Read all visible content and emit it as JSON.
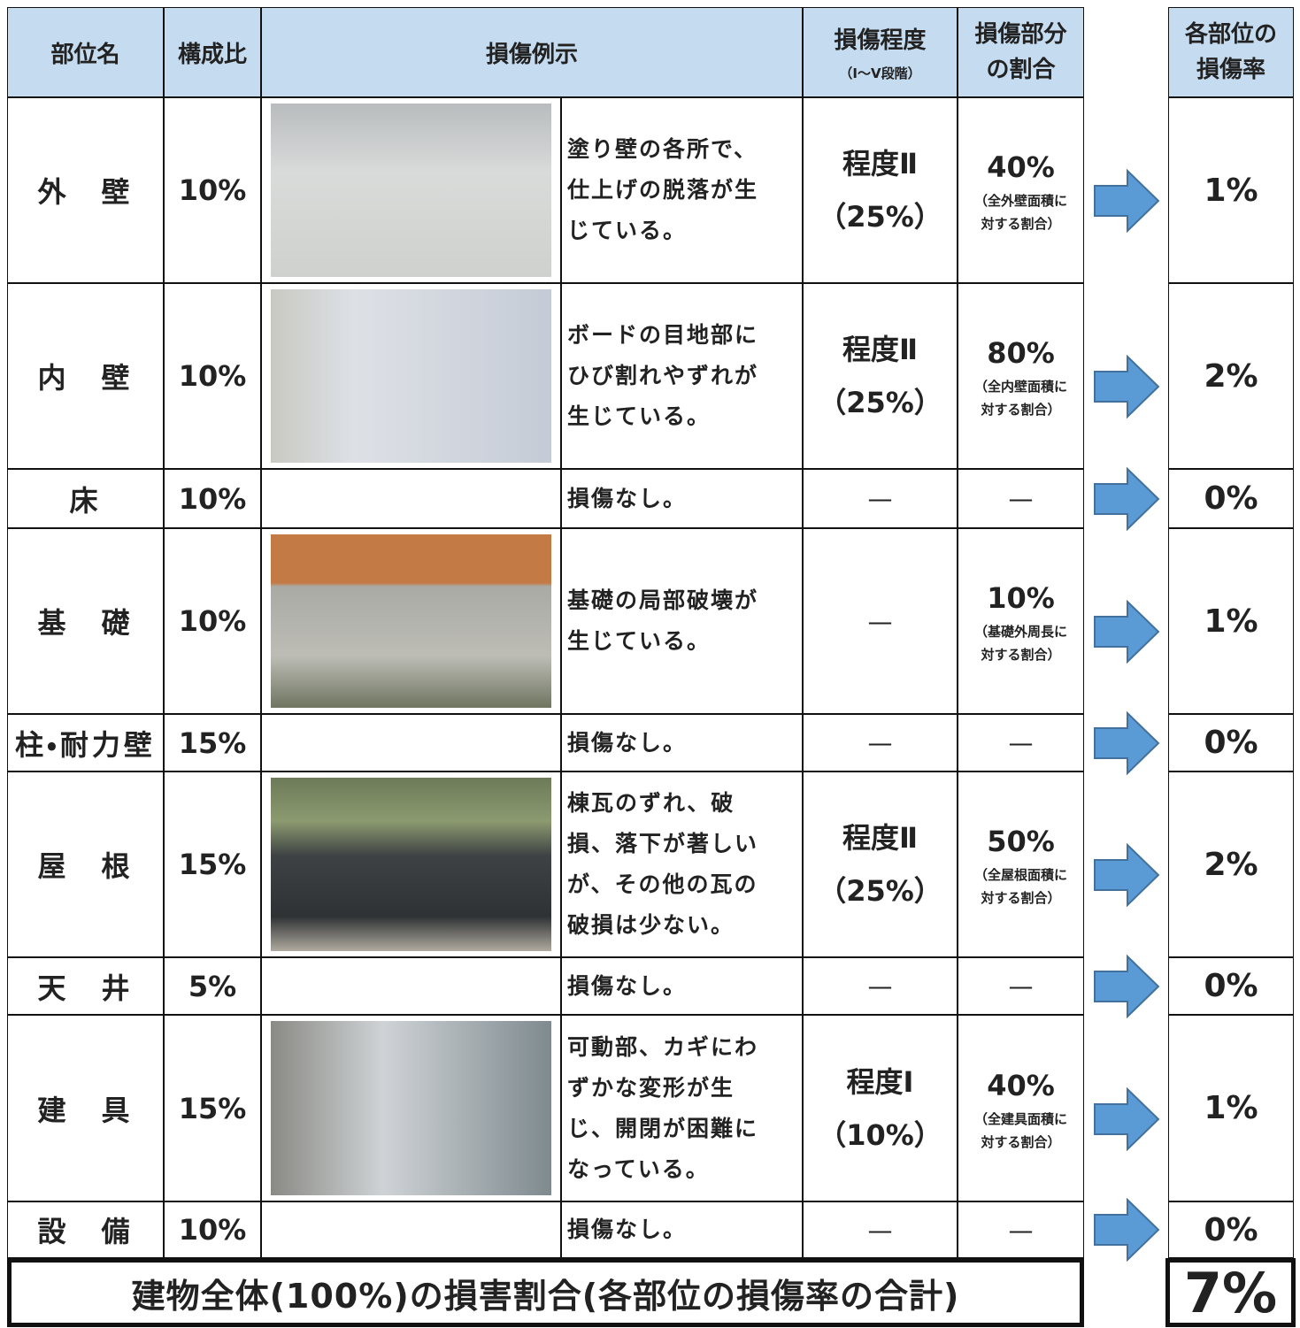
{
  "header": {
    "part": "部位名",
    "ratio": "構成比",
    "example": "損傷例示",
    "degree": "損傷程度",
    "degree_note": "（Ⅰ～Ⅴ段階）",
    "portion": [
      "損傷部分",
      "の割合"
    ],
    "rate": [
      "各部位の",
      "損傷率"
    ]
  },
  "rows": [
    {
      "part": "外　壁",
      "ratio": "10%",
      "description": [
        "塗り壁の各所で、",
        "仕上げの脱落が生",
        "じている。"
      ],
      "degree": [
        "程度Ⅱ",
        "（25%）"
      ],
      "portion": "40%",
      "portion_note": [
        "（全外壁面積に",
        "対する割合）"
      ],
      "rate": "1%"
    },
    {
      "part": "内　壁",
      "ratio": "10%",
      "description": [
        "ボードの目地部に",
        "ひび割れやずれが",
        "生じている。"
      ],
      "degree": [
        "程度Ⅱ",
        "（25%）"
      ],
      "portion": "80%",
      "portion_note": [
        "（全内壁面積に",
        "対する割合）"
      ],
      "rate": "2%"
    },
    {
      "part": "床",
      "ratio": "10%",
      "description": [
        "損傷なし。"
      ],
      "degree": [
        "—"
      ],
      "portion": "—",
      "rate": "0%"
    },
    {
      "part": "基　礎",
      "ratio": "10%",
      "description": [
        "基礎の局部破壊が",
        "生じている。"
      ],
      "degree": [
        "—"
      ],
      "portion": "10%",
      "portion_note": [
        "（基礎外周長に",
        "対する割合）"
      ],
      "rate": "1%"
    },
    {
      "part": "柱・耐力壁",
      "ratio": "15%",
      "description": [
        "損傷なし。"
      ],
      "degree": [
        "—"
      ],
      "portion": "—",
      "rate": "0%"
    },
    {
      "part": "屋　根",
      "ratio": "15%",
      "description": [
        "棟瓦のずれ、破",
        "損、落下が著しい",
        "が、その他の瓦の",
        "破損は少ない。"
      ],
      "degree": [
        "程度Ⅱ",
        "（25%）"
      ],
      "portion": "50%",
      "portion_note": [
        "（全屋根面積に",
        "対する割合）"
      ],
      "rate": "2%"
    },
    {
      "part": "天　井",
      "ratio": "5%",
      "description": [
        "損傷なし。"
      ],
      "degree": [
        "—"
      ],
      "portion": "—",
      "rate": "0%"
    },
    {
      "part": "建　具",
      "ratio": "15%",
      "description": [
        "可動部、カギにわ",
        "ずかな変形が生",
        "じ、開閉が困難に",
        "なっている。"
      ],
      "degree": [
        "程度Ⅰ",
        "（10%）"
      ],
      "portion": "40%",
      "portion_note": [
        "（全建具面積に",
        "対する割合）"
      ],
      "rate": "1%"
    },
    {
      "part": "設　備",
      "ratio": "10%",
      "description": [
        "損傷なし。"
      ],
      "degree": [
        "—"
      ],
      "portion": "—",
      "rate": "0%"
    }
  ],
  "total": {
    "label": "建物全体(100%)の損害割合(各部位の損傷率の合計)",
    "rate": "7%"
  }
}
